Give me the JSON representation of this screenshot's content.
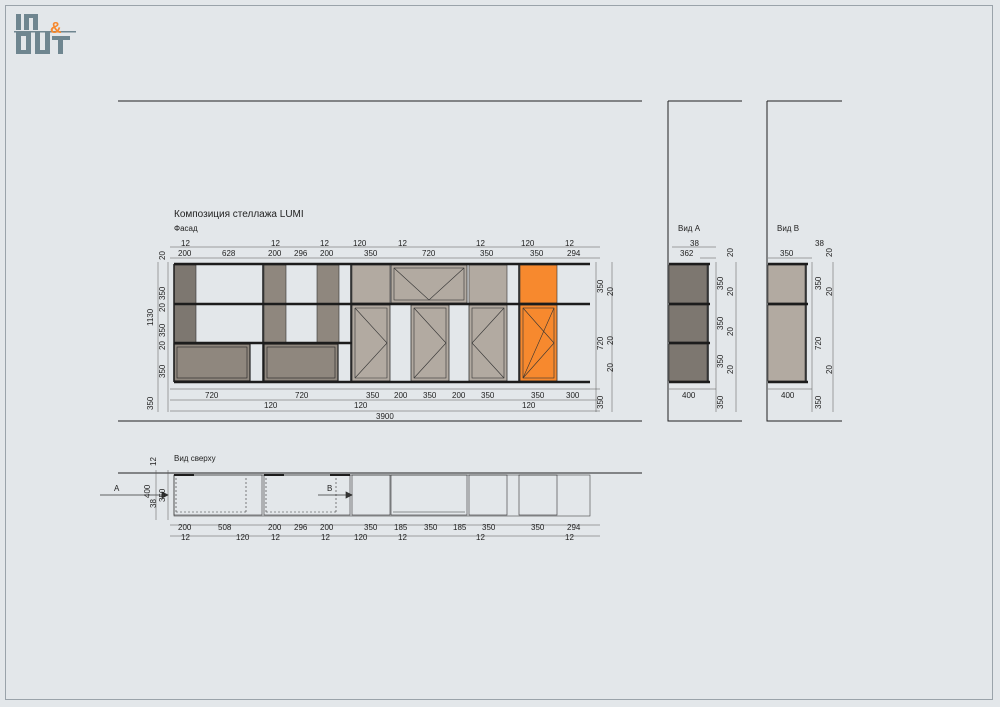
{
  "colors": {
    "background": "#e3e7ea",
    "shelf": "#1c1c1c",
    "panel_dark": "#7d7770",
    "panel_mid": "#8f877e",
    "panel_light": "#b2aaa1",
    "accent_orange": "#f7892e",
    "logo_gray": "#6f8690",
    "logo_orange": "#f7892e"
  },
  "logo": {
    "text": "IN&OUT",
    "icon": "in-out-logo"
  },
  "title": "Композиция стеллажа LUMI",
  "views": {
    "facade": "Фасад",
    "view_a": "Вид А",
    "view_b": "Вид В",
    "top": "Вид сверху"
  },
  "facade_dims": {
    "top_row1": [
      "12",
      "12",
      "12",
      "120",
      "12",
      "12",
      "120",
      "12"
    ],
    "top_row2": [
      "200",
      "628",
      "200",
      "296",
      "200",
      "350",
      "720",
      "350",
      "350",
      "294"
    ],
    "left": [
      "20",
      "350",
      "20",
      "350",
      "20",
      "350"
    ],
    "left_total": "1130",
    "left_bottom": "350",
    "right_a": [
      "350",
      "720"
    ],
    "right_b": [
      "20",
      "20",
      "20"
    ],
    "right_bottom": "350",
    "bottom_row1": [
      "720",
      "720",
      "350",
      "200",
      "350",
      "200",
      "350",
      "350",
      "300"
    ],
    "bottom_row2": [
      "120",
      "120",
      "120"
    ],
    "total": "3900"
  },
  "view_a_dims": {
    "top": [
      "38",
      "362"
    ],
    "right_a": [
      "20",
      "350",
      "20",
      "350",
      "20",
      "350",
      "20"
    ],
    "bottom": "400",
    "bottom_side": "350"
  },
  "view_b_dims": {
    "top": [
      "38",
      "350"
    ],
    "right_a": [
      "20",
      "350",
      "20",
      "720",
      "20"
    ],
    "bottom": "400",
    "bottom_side": "350"
  },
  "top_view_dims": {
    "left": [
      "12",
      "400",
      "38",
      "350"
    ],
    "marker_a": "A",
    "marker_b": "B",
    "row1": [
      "200",
      "508",
      "200",
      "296",
      "200",
      "350",
      "185",
      "350",
      "185",
      "350",
      "350",
      "294"
    ],
    "row2": [
      "12",
      "120",
      "12",
      "12",
      "120",
      "12",
      "12",
      "12"
    ]
  }
}
